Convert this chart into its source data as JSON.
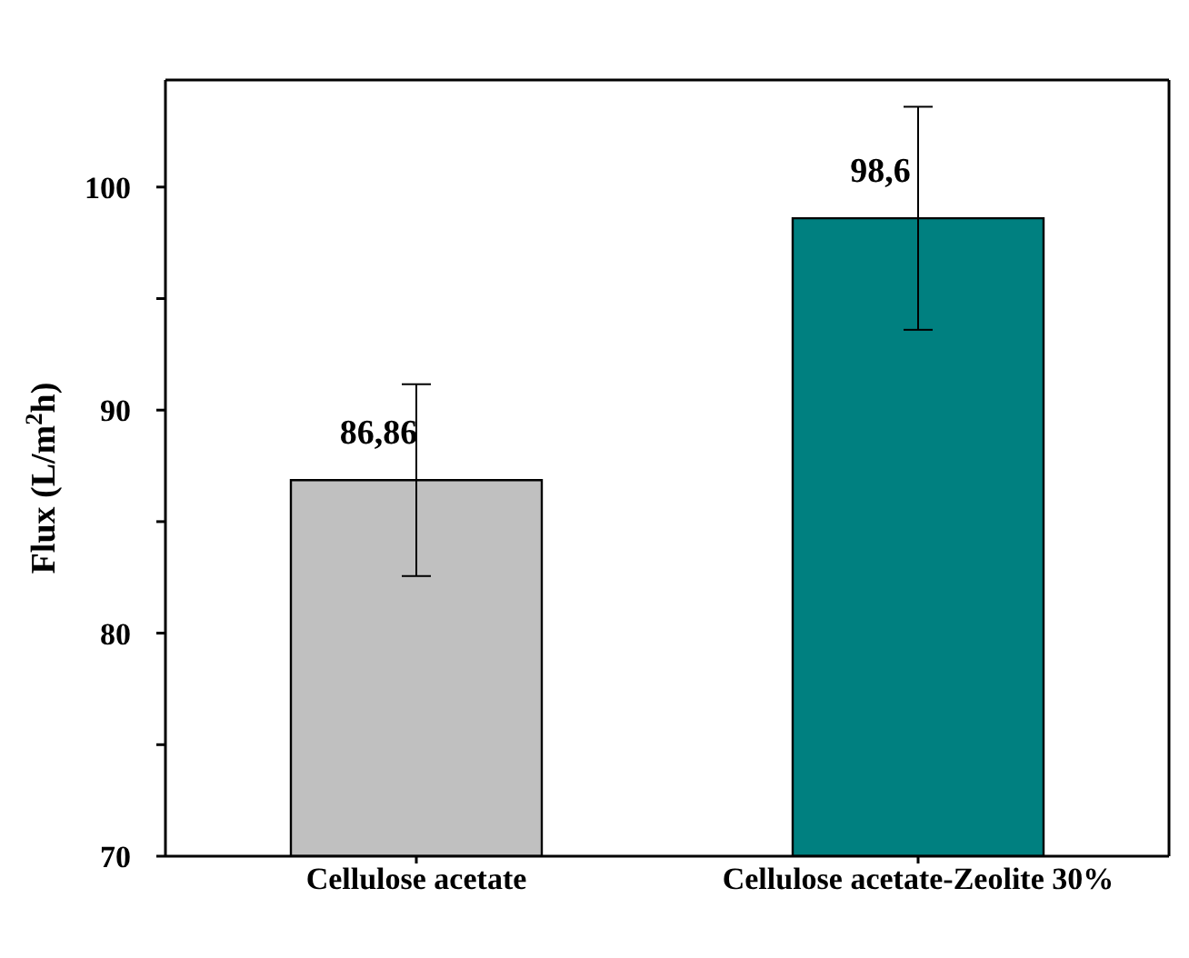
{
  "chart_data": {
    "type": "bar",
    "ylabel": "Flux (L/m$^{2}$h)",
    "categories": [
      "Cellulose acetate",
      "Cellulose acetate-Zeolite 30%"
    ],
    "values": [
      86.86,
      98.6
    ],
    "colors": [
      "#c0c0c0",
      "#008080"
    ],
    "errors": [
      4.3,
      5
    ],
    "value_labels": [
      "86,86",
      "98,6"
    ],
    "ylim": [
      70,
      104.8
    ],
    "yticks": [
      70,
      {
        "value": 75,
        "label": null
      },
      80,
      {
        "value": 85,
        "label": null
      },
      90,
      {
        "value": 95,
        "label": null
      },
      100
    ],
    "grid": false,
    "legend": false
  }
}
